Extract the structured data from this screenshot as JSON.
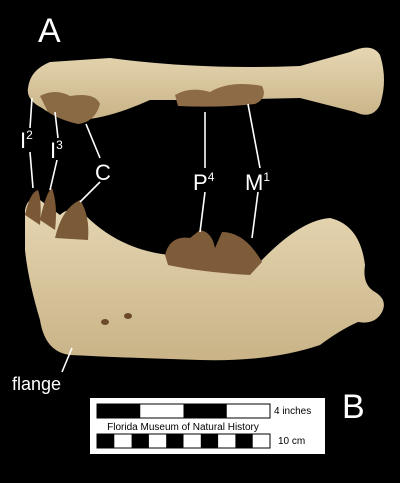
{
  "panels": {
    "top": "A",
    "bottom": "B"
  },
  "labels": {
    "i2": {
      "base": "I",
      "sup": "2"
    },
    "i3": {
      "base": "I",
      "sup": "3"
    },
    "c": "C",
    "p4": {
      "base": "P",
      "sup": "4"
    },
    "m1": {
      "base": "M",
      "sup": "1"
    },
    "flange": "flange"
  },
  "scale_bar": {
    "inches": "4 inches",
    "institution": "Florida Museum of Natural History",
    "cm": "10 cm"
  }
}
